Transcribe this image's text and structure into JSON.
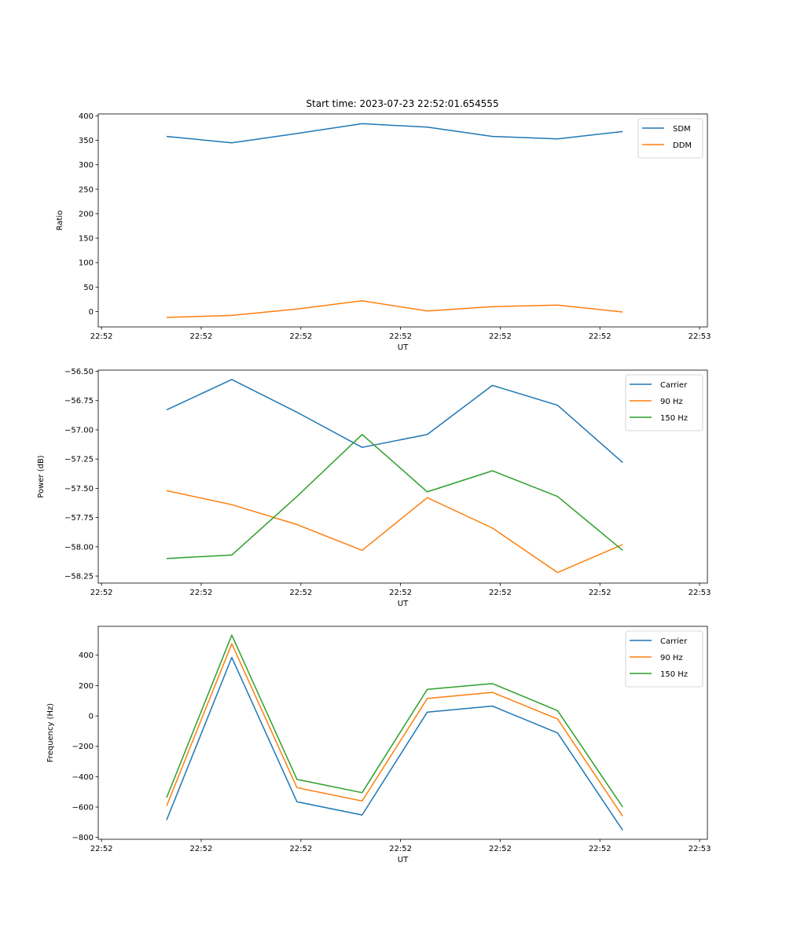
{
  "chart_data": [
    {
      "type": "line",
      "title": "Start time: 2023-07-23 22:52:01.654555",
      "xlabel": "UT",
      "ylabel": "Ratio",
      "ylim": [
        -31.5,
        404
      ],
      "yticks": [
        0,
        50,
        100,
        150,
        200,
        250,
        300,
        350,
        400
      ],
      "ytick_labels": [
        "0",
        "50",
        "100",
        "150",
        "200",
        "250",
        "300",
        "350",
        "400"
      ],
      "x": [
        1,
        2,
        3,
        4,
        5,
        6,
        7,
        8
      ],
      "xlim": [
        -0.05,
        9.3
      ],
      "xticks": [
        0,
        1.53,
        3.06,
        4.59,
        6.12,
        7.65,
        9.18
      ],
      "xtick_labels": [
        "22:52",
        "22:52",
        "22:52",
        "22:52",
        "22:52",
        "22:52",
        "22:53"
      ],
      "legend": "top-right",
      "series": [
        {
          "name": "SDM",
          "color": "#1f77b4",
          "values": [
            358,
            345,
            364,
            384,
            377,
            358,
            353,
            368
          ]
        },
        {
          "name": "DDM",
          "color": "#ff7f0e",
          "values": [
            -12,
            -8,
            5,
            22,
            1,
            10,
            13,
            -1
          ]
        }
      ]
    },
    {
      "type": "line",
      "title": "",
      "xlabel": "UT",
      "ylabel": "Power (dB)",
      "ylim": [
        -58.31,
        -56.49
      ],
      "yticks": [
        -58.25,
        -58.0,
        -57.75,
        -57.5,
        -57.25,
        -57.0,
        -56.75,
        -56.5
      ],
      "ytick_labels": [
        "−58.25",
        "−58.00",
        "−57.75",
        "−57.50",
        "−57.25",
        "−57.00",
        "−56.75",
        "−56.50"
      ],
      "x": [
        1,
        2,
        3,
        4,
        5,
        6,
        7,
        8
      ],
      "xlim": [
        -0.05,
        9.3
      ],
      "xticks": [
        0,
        1.53,
        3.06,
        4.59,
        6.12,
        7.65,
        9.18
      ],
      "xtick_labels": [
        "22:52",
        "22:52",
        "22:52",
        "22:52",
        "22:52",
        "22:52",
        "22:53"
      ],
      "legend": "top-right",
      "series": [
        {
          "name": "Carrier",
          "color": "#1f77b4",
          "values": [
            -56.83,
            -56.57,
            -56.85,
            -57.15,
            -57.04,
            -56.62,
            -56.79,
            -57.28
          ]
        },
        {
          "name": "90 Hz",
          "color": "#ff7f0e",
          "values": [
            -57.52,
            -57.64,
            -57.81,
            -58.03,
            -57.58,
            -57.84,
            -58.22,
            -57.98
          ]
        },
        {
          "name": "150 Hz",
          "color": "#2ca02c",
          "values": [
            -58.1,
            -58.07,
            -57.57,
            -57.04,
            -57.53,
            -57.35,
            -57.57,
            -58.03
          ]
        }
      ]
    },
    {
      "type": "line",
      "title": "",
      "xlabel": "UT",
      "ylabel": "Frequency (Hz)",
      "ylim": [
        -812,
        590
      ],
      "yticks": [
        -800,
        -600,
        -400,
        -200,
        0,
        200,
        400
      ],
      "ytick_labels": [
        "−800",
        "−600",
        "−400",
        "−200",
        "0",
        "200",
        "400"
      ],
      "x": [
        1,
        2,
        3,
        4,
        5,
        6,
        7,
        8
      ],
      "xlim": [
        -0.05,
        9.3
      ],
      "xticks": [
        0,
        1.53,
        3.06,
        4.59,
        6.12,
        7.65,
        9.18
      ],
      "xtick_labels": [
        "22:52",
        "22:52",
        "22:52",
        "22:52",
        "22:52",
        "22:52",
        "22:53"
      ],
      "legend": "top-right",
      "series": [
        {
          "name": "Carrier",
          "color": "#1f77b4",
          "values": [
            -685,
            385,
            -565,
            -652,
            25,
            65,
            -112,
            -752
          ]
        },
        {
          "name": "90 Hz",
          "color": "#ff7f0e",
          "values": [
            -592,
            475,
            -472,
            -560,
            115,
            155,
            -20,
            -660
          ]
        },
        {
          "name": "150 Hz",
          "color": "#2ca02c",
          "values": [
            -538,
            532,
            -418,
            -505,
            175,
            213,
            35,
            -600
          ]
        }
      ]
    }
  ]
}
